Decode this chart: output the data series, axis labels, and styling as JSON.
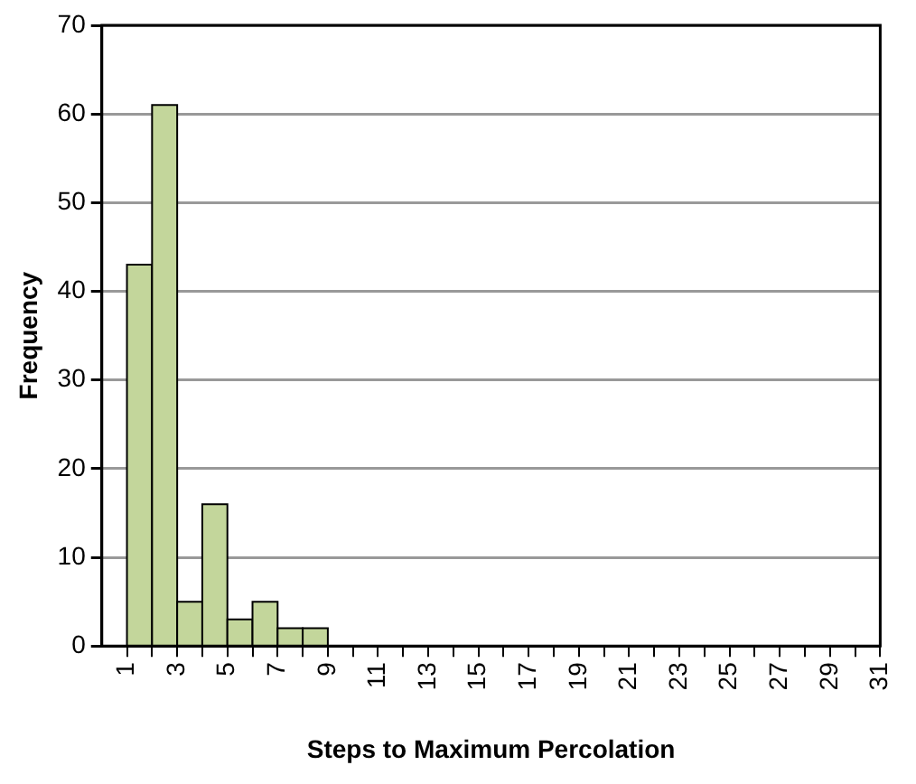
{
  "chart_data": {
    "type": "histogram",
    "xlabel": "Steps to Maximum Percolation",
    "ylabel": "Frequency",
    "bins": [
      0,
      1,
      2,
      3,
      4,
      5,
      6,
      7,
      8,
      9,
      10,
      11,
      12,
      13,
      14,
      15,
      16,
      17,
      18,
      19,
      20,
      21,
      22,
      23,
      24,
      25,
      26,
      27,
      28,
      29,
      30,
      31
    ],
    "values": [
      0,
      43,
      61,
      5,
      16,
      3,
      5,
      2,
      2,
      0,
      0,
      0,
      0,
      0,
      0,
      0,
      0,
      0,
      0,
      0,
      0,
      0,
      0,
      0,
      0,
      0,
      0,
      0,
      0,
      0,
      0
    ],
    "color": "#c3d69b",
    "xlim": [
      0,
      31
    ],
    "xticks": [
      1,
      {
        "value": 2,
        "label": null
      },
      3,
      {
        "value": 4,
        "label": null
      },
      5,
      {
        "value": 6,
        "label": null
      },
      7,
      {
        "value": 8,
        "label": null
      },
      9,
      {
        "value": 10,
        "label": null
      },
      11,
      {
        "value": 12,
        "label": null
      },
      13,
      {
        "value": 14,
        "label": null
      },
      15,
      {
        "value": 16,
        "label": null
      },
      17,
      {
        "value": 18,
        "label": null
      },
      19,
      {
        "value": 20,
        "label": null
      },
      21,
      {
        "value": 22,
        "label": null
      },
      23,
      {
        "value": 24,
        "label": null
      },
      25,
      {
        "value": 26,
        "label": null
      },
      27,
      {
        "value": 28,
        "label": null
      },
      29,
      {
        "value": 30,
        "label": null
      },
      31
    ],
    "ylim": [
      0,
      70
    ],
    "yticks": [
      0,
      10,
      20,
      30,
      40,
      50,
      60,
      70
    ],
    "grid": "y",
    "legend": false
  }
}
